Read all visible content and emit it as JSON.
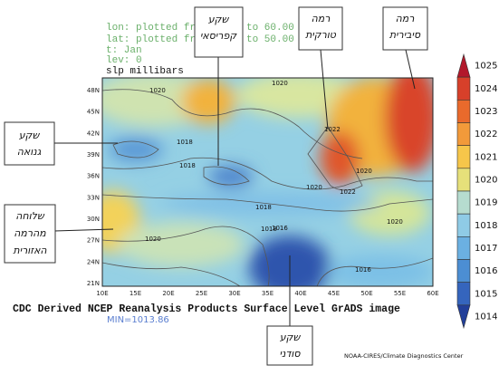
{
  "header": {
    "lines": [
      "lon: plotted fr",
      "to 60.00",
      "lat: plotted fr",
      "to 50.00",
      "t: Jan",
      "lev: 0"
    ],
    "title": "slp millibars"
  },
  "map": {
    "y_labels": [
      "48N",
      "45N",
      "42N",
      "39N",
      "36N",
      "33N",
      "30N",
      "27N",
      "24N",
      "21N"
    ],
    "x_labels": [
      "10E",
      "15E",
      "20E",
      "25E",
      "30E",
      "35E",
      "40E",
      "45E",
      "50E",
      "55E",
      "60E"
    ],
    "contour_labels": [
      "1020",
      "1020",
      "1018",
      "1018",
      "1022",
      "1020",
      "1020",
      "1022",
      "1018",
      "1018",
      "1020",
      "1020",
      "1016",
      "1016"
    ]
  },
  "colorbar": {
    "labels": [
      "1025",
      "1024",
      "1023",
      "1022",
      "1021",
      "1020",
      "1019",
      "1018",
      "1017",
      "1016",
      "1015",
      "1014"
    ],
    "colors": [
      "#b2182b",
      "#d7402a",
      "#e96a2c",
      "#f29a3a",
      "#f6c64a",
      "#e6e07a",
      "#b6dccf",
      "#8fcbe6",
      "#6bb0e2",
      "#4c8ed3",
      "#3565bd",
      "#223f99"
    ]
  },
  "footer": {
    "caption": "CDC Derived NCEP Reanalysis Products Surface Level GrADS image",
    "min": "MIN=1013.86",
    "credit": "NOAA-CIRES/Climate Diagnostics Center"
  },
  "callouts": {
    "cyprus_low": [
      "שקע",
      "קפריסאי"
    ],
    "turkish_high": [
      "רמה",
      "טורקית"
    ],
    "siberian_high": [
      "רמה",
      "סיבירית"
    ],
    "genoa_low": [
      "שקע",
      "גנואה"
    ],
    "regional_ridge": [
      "שלוחה",
      "מהרמה",
      "האזורית"
    ],
    "sudan_low": [
      "שקע",
      "סודני"
    ]
  }
}
